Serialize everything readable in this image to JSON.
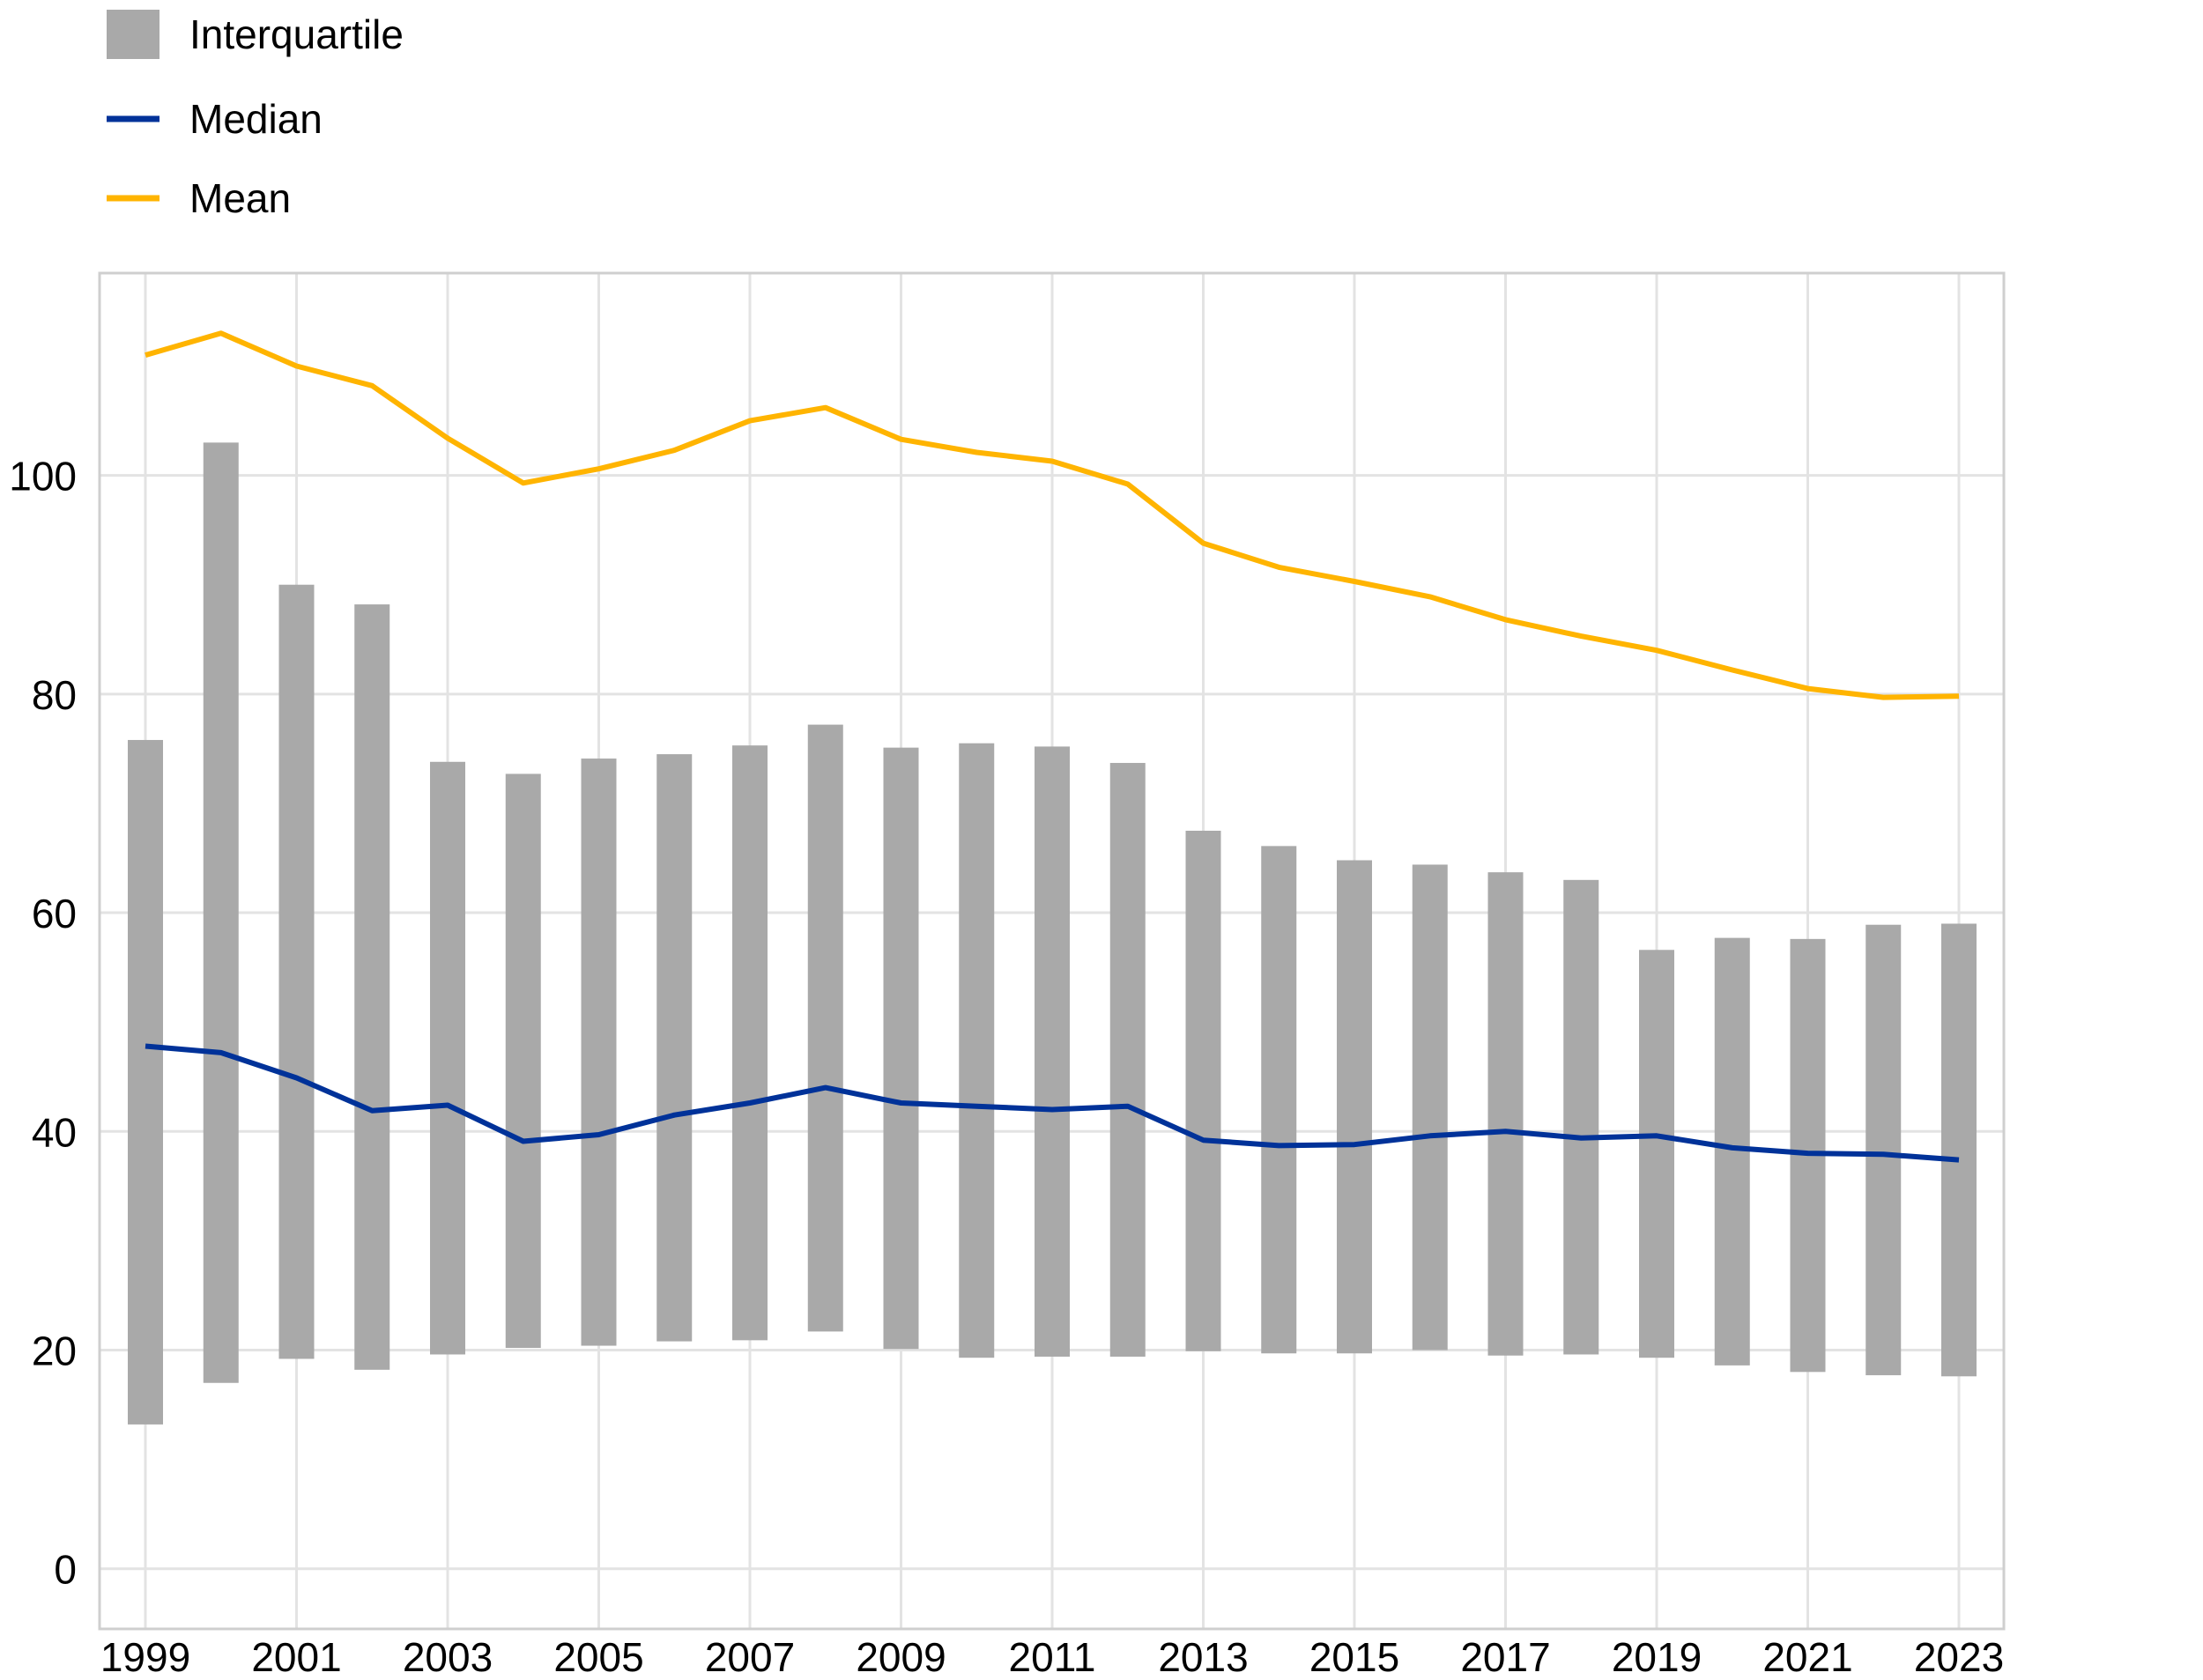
{
  "chart_data": {
    "type": "bar",
    "categories": [
      "1999",
      "2000",
      "2001",
      "2002",
      "2003",
      "2004",
      "2005",
      "2006",
      "2007",
      "2008",
      "2009",
      "2010",
      "2011",
      "2012",
      "2013",
      "2014",
      "2015",
      "2016",
      "2017",
      "2018",
      "2019",
      "2020",
      "2021",
      "2022",
      "2023"
    ],
    "x_tick_labels": [
      "1999",
      "2001",
      "2003",
      "2005",
      "2007",
      "2009",
      "2011",
      "2013",
      "2015",
      "2017",
      "2019",
      "2021",
      "2023"
    ],
    "y_tick_labels": [
      "0",
      "20",
      "40",
      "60",
      "80",
      "100"
    ],
    "ylim": [
      -5.5,
      118.5
    ],
    "grid": true,
    "legend_position": "top-left",
    "title": "",
    "xlabel": "",
    "ylabel": "",
    "series": [
      {
        "name": "Interquartile",
        "kind": "range-bar",
        "color": "#a9a9a9",
        "low": [
          13.2,
          17.0,
          19.2,
          18.2,
          19.6,
          20.2,
          20.4,
          20.8,
          20.9,
          21.7,
          20.1,
          19.3,
          19.4,
          19.4,
          19.9,
          19.7,
          19.7,
          20.0,
          19.5,
          19.6,
          19.3,
          18.6,
          18.0,
          17.7,
          17.6
        ],
        "high": [
          75.8,
          103.0,
          90.0,
          88.2,
          73.8,
          72.7,
          74.1,
          74.5,
          75.3,
          77.2,
          75.1,
          75.5,
          75.2,
          73.7,
          67.5,
          66.1,
          64.8,
          64.4,
          63.7,
          63.0,
          56.6,
          57.7,
          57.6,
          58.9,
          59.0
        ]
      },
      {
        "name": "Median",
        "kind": "line",
        "color": "#003299",
        "values": [
          47.8,
          47.2,
          44.9,
          41.9,
          42.4,
          39.1,
          39.7,
          41.5,
          42.6,
          44.0,
          42.6,
          42.3,
          42.0,
          42.3,
          39.2,
          38.7,
          38.8,
          39.6,
          40.0,
          39.4,
          39.6,
          38.5,
          38.0,
          37.9,
          37.4
        ]
      },
      {
        "name": "Mean",
        "kind": "line",
        "color": "#ffb400",
        "values": [
          111.0,
          113.0,
          110.0,
          108.2,
          103.4,
          99.3,
          100.6,
          102.3,
          105.0,
          106.2,
          103.3,
          102.1,
          101.3,
          99.2,
          93.8,
          91.6,
          90.3,
          88.9,
          86.8,
          85.3,
          84.0,
          82.2,
          80.5,
          79.7,
          79.8
        ]
      }
    ]
  }
}
